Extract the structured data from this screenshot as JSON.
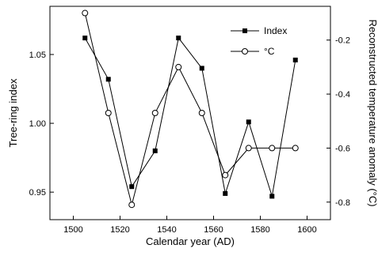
{
  "chart_data": {
    "type": "line",
    "xlabel": "Calendar year (AD)",
    "ylabel": "Tree-ring index",
    "y2label": "Reconstructed temperature anomaly (°C)",
    "xlim": [
      1490,
      1610
    ],
    "ylim": [
      0.93,
      1.085
    ],
    "y2lim": [
      -0.865,
      -0.075
    ],
    "xticks": [
      1500,
      1520,
      1540,
      1560,
      1580,
      1600
    ],
    "yticks": [
      0.95,
      1.0,
      1.05
    ],
    "y2ticks": [
      -0.8,
      -0.6,
      -0.4,
      -0.2
    ],
    "ytick_labels": [
      "0.95",
      "1.00",
      "1.05"
    ],
    "y2tick_labels": [
      "-0.8",
      "-0.6",
      "-0.4",
      "-0.2"
    ],
    "legend_position": "top-right",
    "series": [
      {
        "name": "Index",
        "axis": "left",
        "marker": "filled-square",
        "x": [
          1505,
          1515,
          1525,
          1535,
          1545,
          1555,
          1565,
          1575,
          1585,
          1595
        ],
        "y": [
          1.062,
          1.032,
          0.954,
          0.98,
          1.062,
          1.04,
          0.949,
          1.001,
          0.947,
          1.046
        ]
      },
      {
        "name": "°C",
        "axis": "right",
        "marker": "open-circle",
        "x": [
          1505,
          1515,
          1525,
          1535,
          1545,
          1555,
          1565,
          1575,
          1585,
          1595
        ],
        "y": [
          -0.1,
          -0.47,
          -0.81,
          -0.47,
          -0.3,
          -0.47,
          -0.7,
          -0.6,
          -0.6,
          -0.6
        ]
      }
    ]
  }
}
